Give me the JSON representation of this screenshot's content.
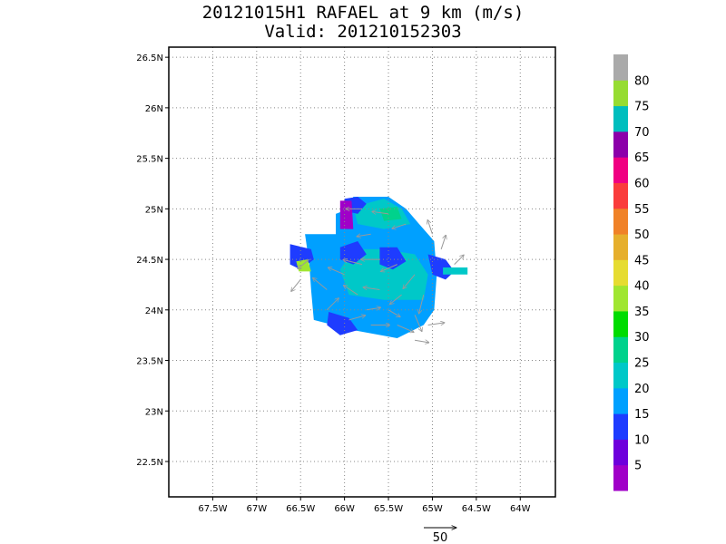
{
  "title": {
    "line1": "20121015H1 RAFAEL at 9 km (m/s)",
    "line2": "Valid: 201210152303"
  },
  "colors": {
    "c0": "#a000c8",
    "c5": "#6e00dc",
    "c10": "#1e3cff",
    "c15": "#00a0ff",
    "c20": "#00c8c8",
    "c25": "#00d28c",
    "c30": "#00dc00",
    "c35": "#a0e632",
    "c40": "#e6dc32",
    "c45": "#e6af2d",
    "c50": "#f08228",
    "c55": "#fa3c3c",
    "c60": "#f00082",
    "c65": "#8c00aa",
    "c70": "#00bebe",
    "c75": "#96dc32",
    "c80": "#aaaaaa",
    "arrow": "#999999"
  },
  "chart_data": {
    "type": "heatmap",
    "xlabel": "",
    "ylabel": "",
    "xlim": [
      -68,
      -63.6
    ],
    "ylim": [
      22.15,
      26.6
    ],
    "x_ticks": [
      {
        "value": -67.5,
        "label": "67.5W"
      },
      {
        "value": -67.0,
        "label": "67W"
      },
      {
        "value": -66.5,
        "label": "66.5W"
      },
      {
        "value": -66.0,
        "label": "66W"
      },
      {
        "value": -65.5,
        "label": "65.5W"
      },
      {
        "value": -65.0,
        "label": "65W"
      },
      {
        "value": -64.5,
        "label": "64.5W"
      },
      {
        "value": -64.0,
        "label": "64W"
      }
    ],
    "y_ticks": [
      {
        "value": 22.5,
        "label": "22.5N"
      },
      {
        "value": 23.0,
        "label": "23N"
      },
      {
        "value": 23.5,
        "label": "23.5N"
      },
      {
        "value": 24.0,
        "label": "24N"
      },
      {
        "value": 24.5,
        "label": "24.5N"
      },
      {
        "value": 25.0,
        "label": "25N"
      },
      {
        "value": 25.5,
        "label": "25.5N"
      },
      {
        "value": 26.0,
        "label": "26N"
      },
      {
        "value": 26.5,
        "label": "26.5N"
      }
    ],
    "grid": true,
    "colorbar": {
      "labels": [
        "5",
        "10",
        "15",
        "20",
        "25",
        "30",
        "35",
        "40",
        "45",
        "50",
        "55",
        "60",
        "65",
        "70",
        "75",
        "80"
      ],
      "colors": [
        "#a000c8",
        "#6e00dc",
        "#1e3cff",
        "#00a0ff",
        "#00c8c8",
        "#00d28c",
        "#00dc00",
        "#a0e632",
        "#e6dc32",
        "#e6af2d",
        "#f08228",
        "#fa3c3c",
        "#f00082",
        "#8c00aa",
        "#00bebe",
        "#96dc32",
        "#aaaaaa"
      ]
    },
    "reference_vector": {
      "value": 50,
      "label": "50"
    },
    "regions": [
      {
        "color_key": "c15",
        "level": 20,
        "points": [
          [
            -66.45,
            24.75
          ],
          [
            -66.1,
            24.75
          ],
          [
            -66.1,
            24.95
          ],
          [
            -65.95,
            25.0
          ],
          [
            -65.9,
            25.12
          ],
          [
            -65.5,
            25.12
          ],
          [
            -65.3,
            25.0
          ],
          [
            -65.15,
            24.85
          ],
          [
            -64.98,
            24.68
          ],
          [
            -64.95,
            24.35
          ],
          [
            -64.98,
            24.0
          ],
          [
            -65.1,
            23.85
          ],
          [
            -65.4,
            23.72
          ],
          [
            -65.9,
            23.8
          ],
          [
            -66.35,
            23.9
          ],
          [
            -66.38,
            24.2
          ],
          [
            -66.4,
            24.45
          ],
          [
            -66.45,
            24.75
          ]
        ]
      },
      {
        "color_key": "c20",
        "level": 25,
        "points": [
          [
            -65.95,
            24.15
          ],
          [
            -65.55,
            24.1
          ],
          [
            -65.1,
            24.1
          ],
          [
            -65.05,
            24.35
          ],
          [
            -65.2,
            24.55
          ],
          [
            -65.55,
            24.6
          ],
          [
            -65.9,
            24.6
          ],
          [
            -66.05,
            24.4
          ],
          [
            -65.95,
            24.15
          ]
        ]
      },
      {
        "color_key": "c20",
        "level": 25,
        "points": [
          [
            -65.9,
            25.02
          ],
          [
            -65.55,
            25.1
          ],
          [
            -65.35,
            25.0
          ],
          [
            -65.25,
            24.85
          ],
          [
            -65.55,
            24.8
          ],
          [
            -65.85,
            24.85
          ],
          [
            -65.9,
            25.02
          ]
        ]
      },
      {
        "color_key": "c10",
        "level": 15,
        "points": [
          [
            -66.62,
            24.65
          ],
          [
            -66.38,
            24.6
          ],
          [
            -66.35,
            24.5
          ],
          [
            -66.5,
            24.4
          ],
          [
            -66.62,
            24.45
          ],
          [
            -66.62,
            24.65
          ]
        ]
      },
      {
        "color_key": "c10",
        "level": 15,
        "points": [
          [
            -66.05,
            24.62
          ],
          [
            -65.85,
            24.68
          ],
          [
            -65.75,
            24.55
          ],
          [
            -65.9,
            24.45
          ],
          [
            -66.05,
            24.5
          ],
          [
            -66.05,
            24.62
          ]
        ]
      },
      {
        "color_key": "c10",
        "level": 15,
        "points": [
          [
            -65.6,
            24.62
          ],
          [
            -65.4,
            24.62
          ],
          [
            -65.3,
            24.48
          ],
          [
            -65.45,
            24.4
          ],
          [
            -65.6,
            24.45
          ],
          [
            -65.6,
            24.62
          ]
        ]
      },
      {
        "color_key": "c10",
        "level": 15,
        "points": [
          [
            -65.05,
            24.55
          ],
          [
            -64.85,
            24.5
          ],
          [
            -64.75,
            24.38
          ],
          [
            -64.85,
            24.3
          ],
          [
            -65.0,
            24.35
          ],
          [
            -65.05,
            24.55
          ]
        ]
      },
      {
        "color_key": "c10",
        "level": 15,
        "points": [
          [
            -66.18,
            23.98
          ],
          [
            -65.95,
            23.92
          ],
          [
            -65.85,
            23.8
          ],
          [
            -66.05,
            23.75
          ],
          [
            -66.2,
            23.85
          ],
          [
            -66.18,
            23.98
          ]
        ]
      },
      {
        "color_key": "c10",
        "level": 15,
        "points": [
          [
            -66.0,
            25.1
          ],
          [
            -65.85,
            25.12
          ],
          [
            -65.75,
            25.05
          ],
          [
            -65.85,
            24.95
          ],
          [
            -66.0,
            24.98
          ],
          [
            -66.0,
            25.1
          ]
        ]
      },
      {
        "color_key": "c0",
        "level": 5,
        "points": [
          [
            -66.05,
            25.08
          ],
          [
            -65.92,
            25.08
          ],
          [
            -65.9,
            24.8
          ],
          [
            -66.05,
            24.8
          ],
          [
            -66.05,
            25.08
          ]
        ]
      },
      {
        "color_key": "c25",
        "level": 30,
        "points": [
          [
            -65.6,
            25.0
          ],
          [
            -65.4,
            25.02
          ],
          [
            -65.35,
            24.9
          ],
          [
            -65.55,
            24.88
          ],
          [
            -65.6,
            25.0
          ]
        ]
      },
      {
        "color_key": "c35",
        "level": 40,
        "points": [
          [
            -66.55,
            24.48
          ],
          [
            -66.42,
            24.5
          ],
          [
            -66.38,
            24.38
          ],
          [
            -66.52,
            24.38
          ],
          [
            -66.55,
            24.48
          ]
        ]
      },
      {
        "color_key": "c20",
        "level": 25,
        "points": [
          [
            -64.88,
            24.42
          ],
          [
            -64.6,
            24.42
          ],
          [
            -64.6,
            24.35
          ],
          [
            -64.88,
            24.35
          ],
          [
            -64.88,
            24.42
          ]
        ]
      }
    ],
    "vectors": [
      {
        "lon": -66.2,
        "lat": 24.2,
        "u": -6,
        "v": 5
      },
      {
        "lon": -66.0,
        "lat": 24.35,
        "u": -7,
        "v": 3
      },
      {
        "lon": -65.8,
        "lat": 24.45,
        "u": -8,
        "v": 2
      },
      {
        "lon": -65.6,
        "lat": 24.5,
        "u": -8,
        "v": 0
      },
      {
        "lon": -65.4,
        "lat": 24.45,
        "u": -7,
        "v": -3
      },
      {
        "lon": -65.2,
        "lat": 24.35,
        "u": -5,
        "v": -6
      },
      {
        "lon": -65.1,
        "lat": 24.15,
        "u": -2,
        "v": -8
      },
      {
        "lon": -65.2,
        "lat": 23.95,
        "u": 3,
        "v": -7
      },
      {
        "lon": -65.4,
        "lat": 23.85,
        "u": 7,
        "v": -3
      },
      {
        "lon": -65.7,
        "lat": 23.85,
        "u": 8,
        "v": 0
      },
      {
        "lon": -65.95,
        "lat": 23.9,
        "u": 7,
        "v": 2
      },
      {
        "lon": -66.2,
        "lat": 24.0,
        "u": 5,
        "v": 5
      },
      {
        "lon": -65.85,
        "lat": 24.15,
        "u": -6,
        "v": 4
      },
      {
        "lon": -65.6,
        "lat": 24.2,
        "u": -7,
        "v": 1
      },
      {
        "lon": -65.35,
        "lat": 24.15,
        "u": -5,
        "v": -4
      },
      {
        "lon": -65.5,
        "lat": 24.0,
        "u": 5,
        "v": -3
      },
      {
        "lon": -65.75,
        "lat": 24.0,
        "u": 6,
        "v": 1
      },
      {
        "lon": -65.8,
        "lat": 25.0,
        "u": -7,
        "v": 0
      },
      {
        "lon": -65.5,
        "lat": 24.95,
        "u": -7,
        "v": 1
      },
      {
        "lon": -65.3,
        "lat": 24.85,
        "u": -6,
        "v": -2
      },
      {
        "lon": -65.7,
        "lat": 24.75,
        "u": -6,
        "v": -1
      },
      {
        "lon": -66.4,
        "lat": 24.5,
        "u": -5,
        "v": -4
      },
      {
        "lon": -66.5,
        "lat": 24.3,
        "u": -4,
        "v": -5
      },
      {
        "lon": -64.9,
        "lat": 24.6,
        "u": 2,
        "v": 6
      },
      {
        "lon": -64.75,
        "lat": 24.45,
        "u": 4,
        "v": 4
      },
      {
        "lon": -65.0,
        "lat": 24.75,
        "u": -2,
        "v": 6
      },
      {
        "lon": -65.2,
        "lat": 23.7,
        "u": 6,
        "v": -1
      },
      {
        "lon": -65.05,
        "lat": 23.85,
        "u": 7,
        "v": 1
      }
    ]
  }
}
